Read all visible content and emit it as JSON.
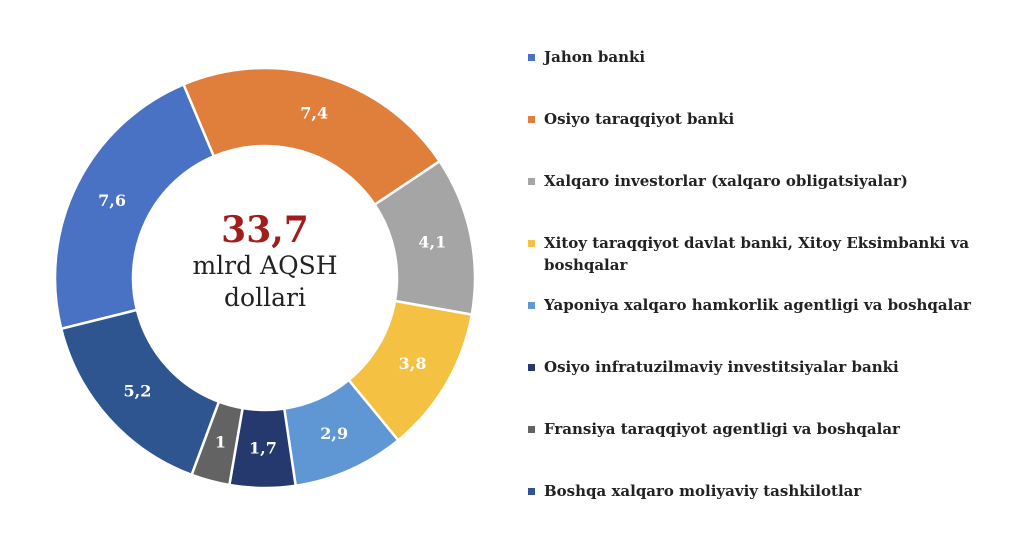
{
  "chart_data": {
    "type": "pie",
    "donut": true,
    "center": {
      "value": "33,7",
      "line1": "mlrd AQSH",
      "line2": "dollari"
    },
    "slices": [
      {
        "label": "Jahon banki",
        "value": 7.6,
        "value_label": "7,6",
        "color": "#4a72c4"
      },
      {
        "label": "Osiyo taraqqiyot banki",
        "value": 7.4,
        "value_label": "7,4",
        "color": "#e07e3c"
      },
      {
        "label": "Xalqaro investorlar (xalqaro obligatsiyalar)",
        "value": 4.1,
        "value_label": "4,1",
        "color": "#a5a5a5"
      },
      {
        "label": "Xitoy taraqqiyot davlat banki, Xitoy Eksimbanki va boshqalar",
        "value": 3.8,
        "value_label": "3,8",
        "color": "#f4c142"
      },
      {
        "label": "Yaponiya xalqaro hamkorlik agentligi va boshqalar",
        "value": 2.9,
        "value_label": "2,9",
        "color": "#5f97d4"
      },
      {
        "label": "Osiyo infratuzilmaviy investitsiyalar banki",
        "value": 1.7,
        "value_label": "1,7",
        "color": "#26396e"
      },
      {
        "label": "Fransiya taraqqiyot agentligi va boshqalar",
        "value": 1.0,
        "value_label": "1",
        "color": "#636363"
      },
      {
        "label": "Boshqa xalqaro moliyaviy tashkilotlar",
        "value": 5.2,
        "value_label": "5,2",
        "color": "#2e5590"
      }
    ],
    "legend_order": [
      0,
      1,
      2,
      3,
      4,
      5,
      6,
      7
    ],
    "legend_position": "right"
  }
}
